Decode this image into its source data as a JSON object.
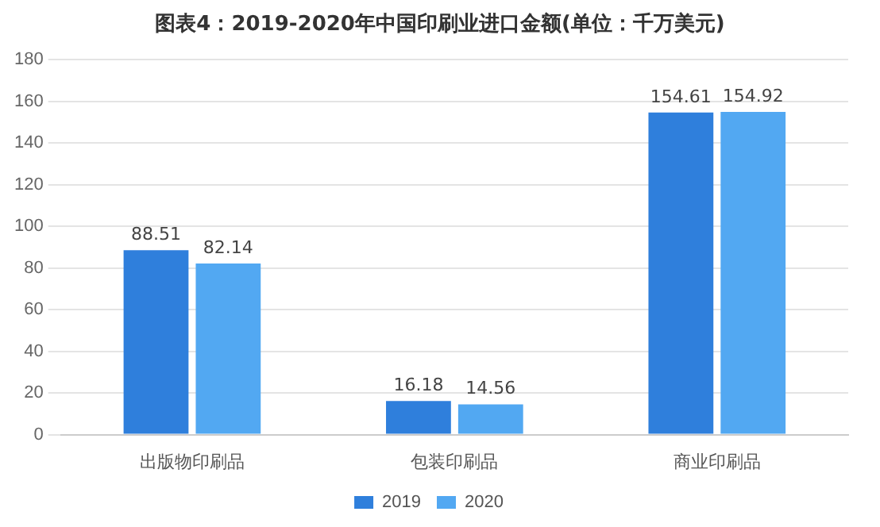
{
  "chart_data": {
    "type": "bar",
    "title": "图表4：2019-2020年中国印刷业进口金额(单位：千万美元)",
    "categories": [
      "出版物印刷品",
      "包装印刷品",
      "商业印刷品"
    ],
    "series": [
      {
        "name": "2019",
        "color": "#2f7fdc",
        "values": [
          88.51,
          16.18,
          154.61
        ]
      },
      {
        "name": "2020",
        "color": "#52a8f2",
        "values": [
          82.14,
          14.56,
          154.92
        ]
      }
    ],
    "ylim": [
      0,
      180
    ],
    "yticks": [
      0,
      20,
      40,
      60,
      80,
      100,
      120,
      140,
      160,
      180
    ],
    "grid": "y",
    "legend": "bottom",
    "data_labels": true
  }
}
